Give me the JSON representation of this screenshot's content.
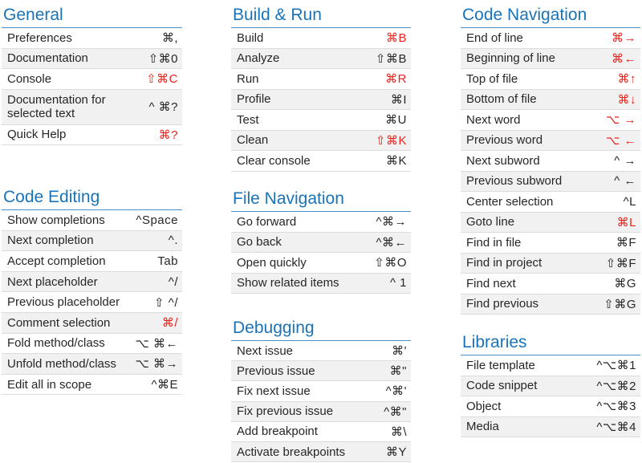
{
  "colors": {
    "heading": "#1a73b8",
    "highlight": "#e8231c",
    "text": "#262626",
    "stripe": "#f1f1f1"
  },
  "general": {
    "title": "General",
    "items": [
      {
        "label": "Preferences",
        "key": "⌘,",
        "hi": false
      },
      {
        "label": "Documentation",
        "key": "⇧⌘0",
        "hi": false
      },
      {
        "label": "Console",
        "key": "⇧⌘C",
        "hi": true
      },
      {
        "label": "Documentation for selected text",
        "key": "^ ⌘?",
        "hi": false
      },
      {
        "label": "Quick Help",
        "key": "⌘?",
        "hi": true
      }
    ]
  },
  "code_editing": {
    "title": "Code Editing",
    "items": [
      {
        "label": "Show completions",
        "key": "^Space",
        "hi": false
      },
      {
        "label": "Next completion",
        "key": "^.",
        "hi": false
      },
      {
        "label": "Accept completion",
        "key": "Tab",
        "hi": false
      },
      {
        "label": "Next placeholder",
        "key": "^/",
        "hi": false
      },
      {
        "label": "Previous placeholder",
        "key": "⇧ ^/",
        "hi": false
      },
      {
        "label": "Comment selection",
        "key": "⌘/",
        "hi": true
      },
      {
        "label": "Fold method/class",
        "key": "⌥ ⌘←",
        "hi": false
      },
      {
        "label": "Unfold method/class",
        "key": "⌥ ⌘→",
        "hi": false
      },
      {
        "label": "Edit all in scope",
        "key": "^⌘E",
        "hi": false
      }
    ]
  },
  "build_run": {
    "title": "Build & Run",
    "items": [
      {
        "label": "Build",
        "key": "⌘B",
        "hi": true
      },
      {
        "label": "Analyze",
        "key": "⇧⌘B",
        "hi": false
      },
      {
        "label": "Run",
        "key": "⌘R",
        "hi": true
      },
      {
        "label": "Profile",
        "key": "⌘I",
        "hi": false
      },
      {
        "label": "Test",
        "key": "⌘U",
        "hi": false
      },
      {
        "label": "Clean",
        "key": "⇧⌘K",
        "hi": true
      },
      {
        "label": "Clear console",
        "key": "⌘K",
        "hi": false
      }
    ]
  },
  "file_navigation": {
    "title": "File Navigation",
    "items": [
      {
        "label": "Go forward",
        "key": "^⌘→",
        "hi": false
      },
      {
        "label": "Go back",
        "key": "^⌘←",
        "hi": false
      },
      {
        "label": "Open quickly",
        "key": "⇧⌘O",
        "hi": false
      },
      {
        "label": "Show related items",
        "key": "^ 1",
        "hi": false
      }
    ]
  },
  "debugging": {
    "title": "Debugging",
    "items": [
      {
        "label": "Next issue",
        "key": "⌘'",
        "hi": false
      },
      {
        "label": "Previous issue",
        "key": "⌘\"",
        "hi": false
      },
      {
        "label": "Fix next issue",
        "key": "^⌘'",
        "hi": false
      },
      {
        "label": "Fix previous issue",
        "key": "^⌘\"",
        "hi": false
      },
      {
        "label": "Add breakpoint",
        "key": "⌘\\",
        "hi": false
      },
      {
        "label": "Activate breakpoints",
        "key": "⌘Y",
        "hi": false
      }
    ]
  },
  "code_navigation": {
    "title": "Code Navigation",
    "items": [
      {
        "label": "End of line",
        "key": "⌘→",
        "hi": true
      },
      {
        "label": "Beginning of line",
        "key": "⌘←",
        "hi": true
      },
      {
        "label": "Top of file",
        "key": "⌘↑",
        "hi": true
      },
      {
        "label": "Bottom of file",
        "key": "⌘↓",
        "hi": true
      },
      {
        "label": "Next word",
        "key": "⌥ →",
        "hi": true
      },
      {
        "label": "Previous word",
        "key": "⌥ ←",
        "hi": true
      },
      {
        "label": "Next subword",
        "key": "^ →",
        "hi": false
      },
      {
        "label": "Previous subword",
        "key": "^ ←",
        "hi": false
      },
      {
        "label": "Center selection",
        "key": "^L",
        "hi": false
      },
      {
        "label": "Goto line",
        "key": "⌘L",
        "hi": true
      },
      {
        "label": "Find in file",
        "key": "⌘F",
        "hi": false
      },
      {
        "label": "Find in project",
        "key": "⇧⌘F",
        "hi": false
      },
      {
        "label": "Find next",
        "key": "⌘G",
        "hi": false
      },
      {
        "label": "Find previous",
        "key": "⇧⌘G",
        "hi": false
      }
    ]
  },
  "libraries": {
    "title": "Libraries",
    "items": [
      {
        "label": "File template",
        "key": "^⌥⌘1",
        "hi": false
      },
      {
        "label": "Code snippet",
        "key": "^⌥⌘2",
        "hi": false
      },
      {
        "label": "Object",
        "key": "^⌥⌘3",
        "hi": false
      },
      {
        "label": "Media",
        "key": "^⌥⌘4",
        "hi": false
      }
    ]
  }
}
